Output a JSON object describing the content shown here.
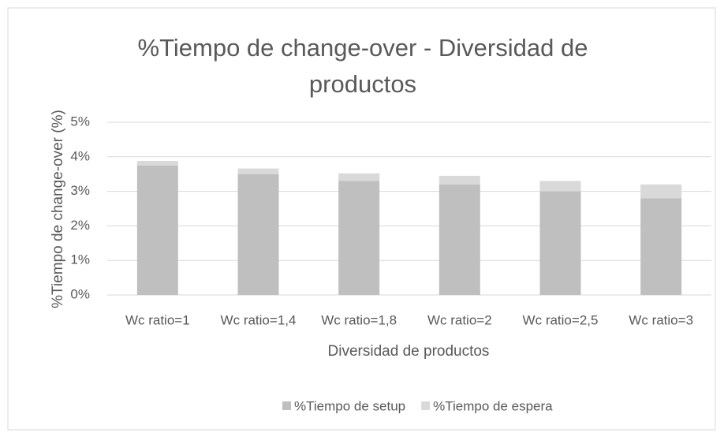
{
  "chart_data": {
    "type": "stacked_bar",
    "title": "%Tiempo de change-over - Diversidad de productos",
    "x_label": "Diversidad de productos",
    "y_label": "%Tiempo de change-over (%)",
    "categories": [
      "Wc ratio=1",
      "Wc ratio=1,4",
      "Wc ratio=1,8",
      "Wc ratio=2",
      "Wc ratio=2,5",
      "Wc ratio=3"
    ],
    "series": [
      {
        "name": "%Tiempo de setup",
        "color": "#bfbfbf",
        "values": [
          3.75,
          3.5,
          3.3,
          3.2,
          3.0,
          2.8
        ]
      },
      {
        "name": "%Tiempo de espera",
        "color": "#d9d9d9",
        "values": [
          0.13,
          0.16,
          0.22,
          0.25,
          0.3,
          0.4
        ]
      }
    ],
    "ylim": [
      0,
      5
    ],
    "yticks": [
      {
        "value": 0,
        "label": "0%"
      },
      {
        "value": 1,
        "label": "1%"
      },
      {
        "value": 2,
        "label": "2%"
      },
      {
        "value": 3,
        "label": "3%"
      },
      {
        "value": 4,
        "label": "4%"
      },
      {
        "value": 5,
        "label": "5%"
      }
    ],
    "grid": true,
    "legend": "bottom"
  }
}
